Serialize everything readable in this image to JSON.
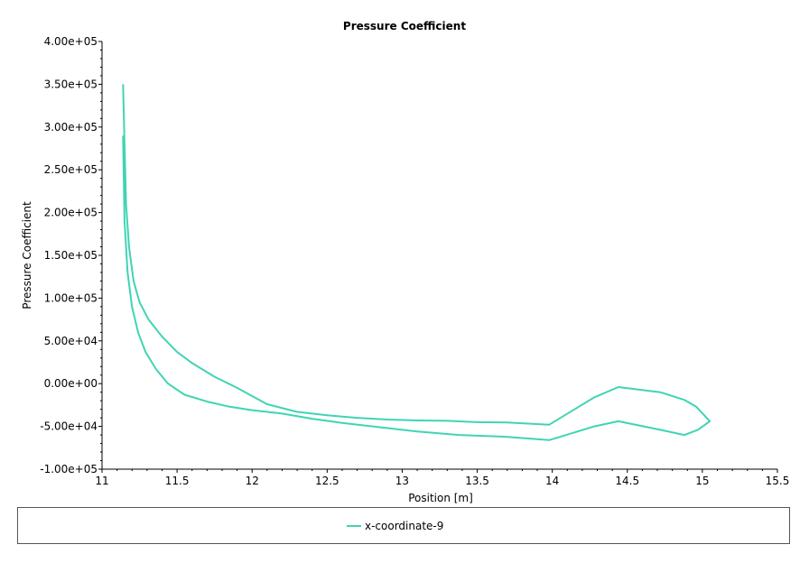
{
  "chart_data": {
    "type": "line",
    "title": "Pressure Coefficient",
    "xlabel": "Position [m]",
    "ylabel": "Pressure Coefficient",
    "xlim": [
      11,
      15.5
    ],
    "ylim": [
      -100000,
      400000
    ],
    "x_ticks": [
      "11",
      "11.5",
      "12",
      "12.5",
      "13",
      "13.5",
      "14",
      "14.5",
      "15",
      "15.5"
    ],
    "x_tick_values": [
      11,
      11.5,
      12,
      12.5,
      13,
      13.5,
      14,
      14.5,
      15,
      15.5
    ],
    "y_ticks": [
      "4.00e+05",
      "3.50e+05",
      "3.00e+05",
      "2.50e+05",
      "2.00e+05",
      "1.50e+05",
      "1.00e+05",
      "5.00e+04",
      "0.00e+00",
      "-5.00e+04",
      "-1.00e+05"
    ],
    "y_tick_values": [
      400000,
      350000,
      300000,
      250000,
      200000,
      150000,
      100000,
      50000,
      0,
      -50000,
      -100000
    ],
    "grid": false,
    "legend_placement": "bottom",
    "series": [
      {
        "name": "x-coordinate-9",
        "color": "#40d4b4",
        "x": [
          11.14,
          11.15,
          11.16,
          11.18,
          11.21,
          11.25,
          11.31,
          11.4,
          11.5,
          11.6,
          11.75,
          11.9,
          12.1,
          12.3,
          12.5,
          12.7,
          12.9,
          13.1,
          13.3,
          13.5,
          13.7,
          13.98,
          14.28,
          14.44,
          14.72,
          14.88,
          14.96,
          15.05,
          14.97,
          14.88,
          14.72,
          14.44,
          14.28,
          13.98,
          13.68,
          13.38,
          13.1,
          12.85,
          12.6,
          12.4,
          12.2,
          12.0,
          11.85,
          11.7,
          11.55,
          11.44,
          11.36,
          11.29,
          11.24,
          11.2,
          11.17,
          11.15,
          11.14
        ],
        "y": [
          350000,
          280000,
          210000,
          160000,
          120000,
          95000,
          75000,
          55000,
          37000,
          24000,
          8000,
          -5000,
          -24000,
          -33000,
          -37000,
          -40000,
          -42000,
          -43000,
          -43500,
          -45000,
          -45500,
          -48000,
          -16000,
          -4000,
          -10000,
          -19000,
          -27000,
          -44000,
          -54000,
          -60000,
          -54000,
          -44000,
          -50000,
          -66000,
          -62000,
          -60000,
          -56000,
          -51000,
          -46000,
          -41000,
          -35000,
          -31000,
          -27000,
          -21000,
          -13000,
          0,
          17000,
          37000,
          60000,
          90000,
          130000,
          190000,
          290000
        ]
      }
    ]
  }
}
